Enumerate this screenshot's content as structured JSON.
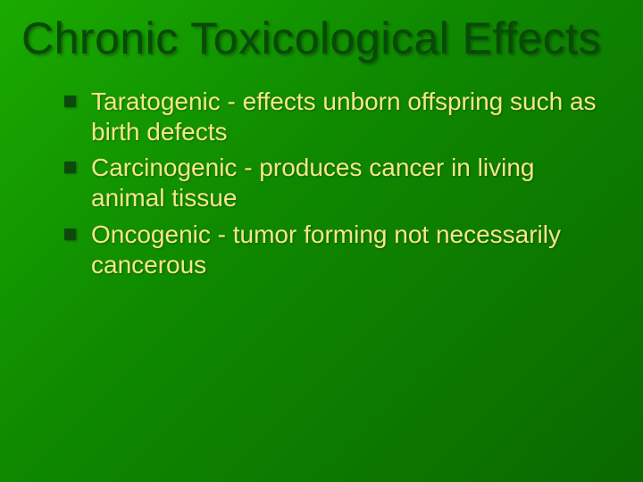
{
  "slide": {
    "title": "Chronic Toxicological Effects",
    "title_color": "#084a08",
    "title_fontsize": 50,
    "title_font": "Impact",
    "background_gradient": [
      "#1aaa00",
      "#0f8a00",
      "#0a6800"
    ],
    "bullet_marker_shape": "square",
    "bullet_marker_color": "#0c4a0c",
    "bullet_text_color": "#f6e68a",
    "bullet_fontsize": 28,
    "bullets": [
      "Taratogenic - effects unborn offspring such as birth defects",
      "Carcinogenic -  produces cancer in living animal tissue",
      "Oncogenic -  tumor forming not necessarily cancerous"
    ]
  }
}
